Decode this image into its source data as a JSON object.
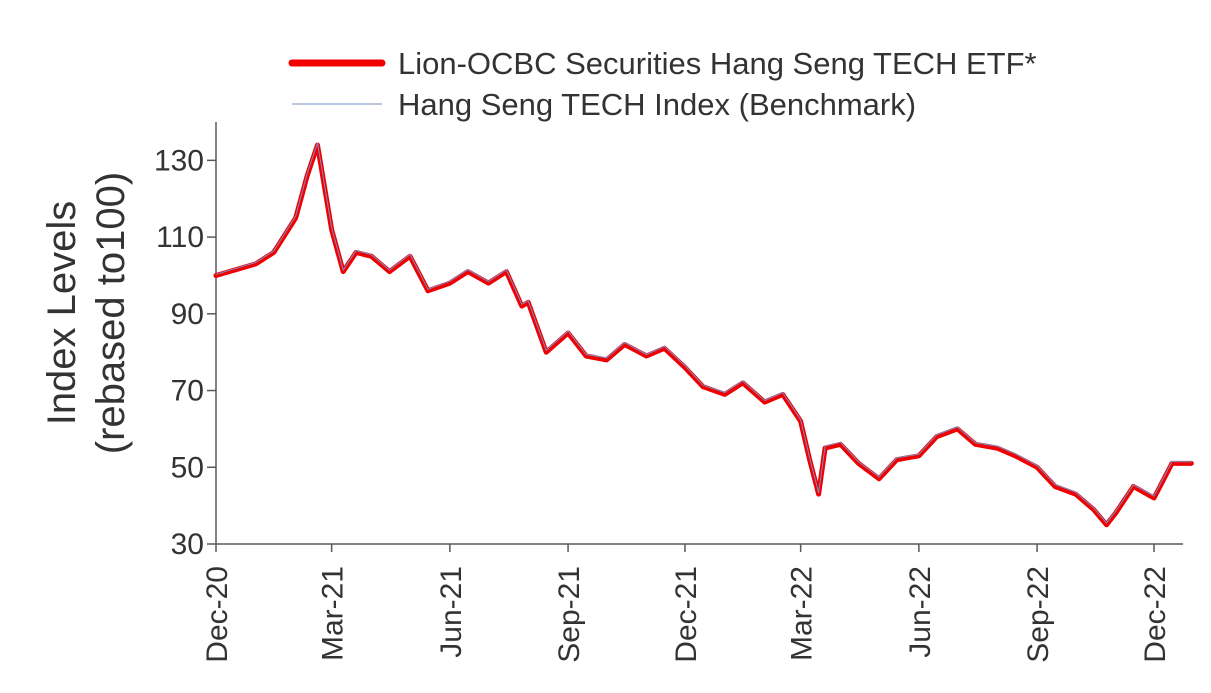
{
  "chart_data": {
    "type": "line",
    "ylabel_line1": "Index Levels",
    "ylabel_line2": "(rebased to100)",
    "ylim": [
      30,
      140
    ],
    "yticks": [
      30,
      50,
      70,
      90,
      110,
      130
    ],
    "xticks": [
      "Dec-20",
      "Mar-21",
      "Jun-21",
      "Sep-21",
      "Dec-21",
      "Mar-22",
      "Jun-22",
      "Sep-22",
      "Dec-22"
    ],
    "x_range": [
      "Dec-20",
      "Dec-22"
    ],
    "grid": false,
    "legend_position": "top",
    "x": [
      "2020-12",
      "2021-01",
      "2021-01-15",
      "2021-02-01",
      "2021-02-10",
      "2021-02-18",
      "2021-03-01",
      "2021-03-10",
      "2021-03-20",
      "2021-04",
      "2021-04-15",
      "2021-05",
      "2021-05-15",
      "2021-06",
      "2021-06-15",
      "2021-07",
      "2021-07-15",
      "2021-07-27",
      "2021-08",
      "2021-08-15",
      "2021-09",
      "2021-09-15",
      "2021-10",
      "2021-10-15",
      "2021-11",
      "2021-11-15",
      "2021-12",
      "2021-12-15",
      "2022-01",
      "2022-01-15",
      "2022-02",
      "2022-02-15",
      "2022-03-01",
      "2022-03-08",
      "2022-03-15",
      "2022-03-20",
      "2022-04",
      "2022-04-15",
      "2022-05",
      "2022-05-15",
      "2022-06",
      "2022-06-15",
      "2022-07",
      "2022-07-15",
      "2022-08",
      "2022-08-15",
      "2022-09",
      "2022-09-15",
      "2022-10",
      "2022-10-15",
      "2022-10-25",
      "2022-11",
      "2022-11-15",
      "2022-12",
      "2022-12-15",
      "2022-12-30"
    ],
    "series": [
      {
        "name": "Lion-OCBC Securities Hang Seng TECH ETF*",
        "color": "#f00000",
        "values": [
          100,
          103,
          106,
          115,
          126,
          134,
          112,
          101,
          106,
          105,
          101,
          105,
          96,
          98,
          101,
          98,
          101,
          92,
          93,
          80,
          85,
          79,
          78,
          82,
          79,
          81,
          76,
          71,
          69,
          72,
          67,
          69,
          62,
          52,
          43,
          55,
          56,
          51,
          47,
          52,
          53,
          58,
          60,
          56,
          55,
          53,
          50,
          45,
          43,
          39,
          35,
          38,
          45,
          42,
          51,
          51
        ]
      },
      {
        "name": "Hang Seng TECH Index (Benchmark)",
        "color": "#7a8ec8",
        "values": [
          100.3,
          103.4,
          106.4,
          115.5,
          126.6,
          134.5,
          112.5,
          101.4,
          106.5,
          105.4,
          101.4,
          105.5,
          96.4,
          98.5,
          101.5,
          98.4,
          101.5,
          92.5,
          93.4,
          80.5,
          85.5,
          79.4,
          78.5,
          82.5,
          79.4,
          81.5,
          76.5,
          71.4,
          69.5,
          72.5,
          67.4,
          69.5,
          62.4,
          52.5,
          43.4,
          55.5,
          56.5,
          51.4,
          47.5,
          52.5,
          53.4,
          58.5,
          60.5,
          56.4,
          55.5,
          53.5,
          50.4,
          45.5,
          43.5,
          39.4,
          35.5,
          38.5,
          45.4,
          42.5,
          51.5,
          51.4
        ]
      }
    ]
  }
}
